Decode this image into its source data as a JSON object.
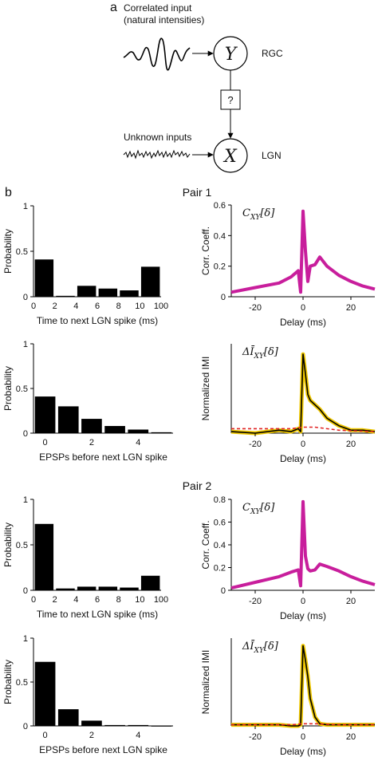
{
  "panel_a": {
    "label": "a",
    "correlated_input_line1": "Correlated input",
    "correlated_input_line2": "(natural intensities)",
    "rgc_node": "Y",
    "rgc_label": "RGC",
    "unknown_box": "?",
    "unknown_inputs": "Unknown inputs",
    "lgn_node": "X",
    "lgn_label": "LGN"
  },
  "panel_b": {
    "label": "b"
  },
  "colors": {
    "corr": "#c81e9c",
    "imi": "#000000",
    "imi_band": "#f0c800",
    "shuffle": "#e02020",
    "bars": "#000000"
  },
  "chart_data": [
    {
      "id": "pair1_time",
      "type": "bar",
      "title": "Pair 1",
      "xlabel": "Time to next LGN spike (ms)",
      "ylabel": "Probability",
      "categories": [
        "0-2",
        "2-4",
        "4-6",
        "6-8",
        "8-10",
        "10-100"
      ],
      "xticks": [
        "0",
        "2",
        "4",
        "6",
        "8",
        "10",
        "100"
      ],
      "values": [
        0.41,
        0.01,
        0.12,
        0.09,
        0.07,
        0.33
      ],
      "ylim": [
        0,
        1
      ],
      "yticks": [
        0,
        0.5,
        1
      ]
    },
    {
      "id": "pair1_corr",
      "type": "line",
      "annotation": "C_XY[δ]",
      "xlabel": "Delay (ms)",
      "ylabel": "Corr. Coeff.",
      "xlim": [
        -30,
        30
      ],
      "ylim": [
        0,
        0.6
      ],
      "xticks": [
        -20,
        0,
        20
      ],
      "yticks": [
        0,
        0.2,
        0.4,
        0.6
      ],
      "series": [
        {
          "x": [
            -30,
            -20,
            -10,
            -5,
            -2,
            -1,
            0,
            1,
            2,
            3,
            5,
            7,
            10,
            15,
            20,
            25,
            30
          ],
          "y": [
            0.03,
            0.06,
            0.09,
            0.13,
            0.17,
            0.03,
            0.56,
            0.3,
            0.1,
            0.2,
            0.21,
            0.26,
            0.2,
            0.14,
            0.1,
            0.07,
            0.05
          ]
        }
      ]
    },
    {
      "id": "pair1_epsp",
      "type": "bar",
      "xlabel": "EPSPs before next LGN spike",
      "ylabel": "Probability",
      "categories": [
        "0",
        "1",
        "2",
        "3",
        "4",
        "5"
      ],
      "xticks": [
        "0",
        "2",
        "4"
      ],
      "values": [
        0.41,
        0.3,
        0.16,
        0.08,
        0.04,
        0.01
      ],
      "ylim": [
        0,
        1
      ],
      "yticks": [
        0,
        0.5,
        1
      ]
    },
    {
      "id": "pair1_imi",
      "type": "line",
      "annotation": "ΔĪ_XY[δ]",
      "xlabel": "Delay (ms)",
      "ylabel": "Normalized IMI",
      "xlim": [
        -30,
        30
      ],
      "ylim": [
        0,
        0.6
      ],
      "xticks": [
        -20,
        0,
        20
      ],
      "series": [
        {
          "x": [
            -30,
            -20,
            -10,
            -5,
            -2,
            -1,
            0,
            1,
            2,
            3,
            5,
            7,
            10,
            15,
            20,
            25,
            30
          ],
          "y": [
            0.01,
            0.0,
            0.02,
            0.01,
            0.03,
            0.01,
            0.53,
            0.4,
            0.26,
            0.22,
            0.19,
            0.16,
            0.1,
            0.05,
            0.02,
            0.02,
            0.01
          ]
        },
        {
          "x": [
            -30,
            -15,
            -5,
            0,
            5,
            15,
            30
          ],
          "y": [
            0.03,
            0.03,
            0.03,
            0.04,
            0.04,
            0.02,
            0.01
          ]
        }
      ]
    },
    {
      "id": "pair2_time",
      "type": "bar",
      "title": "Pair 2",
      "xlabel": "Time to next LGN spike (ms)",
      "ylabel": "Probability",
      "categories": [
        "0-2",
        "2-4",
        "4-6",
        "6-8",
        "8-10",
        "10-100"
      ],
      "xticks": [
        "0",
        "2",
        "4",
        "6",
        "8",
        "10",
        "100"
      ],
      "values": [
        0.73,
        0.02,
        0.04,
        0.04,
        0.03,
        0.16
      ],
      "ylim": [
        0,
        1
      ],
      "yticks": [
        0,
        0.5,
        1
      ]
    },
    {
      "id": "pair2_corr",
      "type": "line",
      "annotation": "C_XY[δ]",
      "xlabel": "Delay (ms)",
      "ylabel": "Corr. Coeff.",
      "xlim": [
        -30,
        30
      ],
      "ylim": [
        0,
        0.8
      ],
      "xticks": [
        -20,
        0,
        20
      ],
      "yticks": [
        0,
        0.2,
        0.4,
        0.6,
        0.8
      ],
      "series": [
        {
          "x": [
            -30,
            -20,
            -10,
            -5,
            -2,
            -1,
            0,
            1,
            2,
            3,
            5,
            7,
            10,
            15,
            20,
            25,
            30
          ],
          "y": [
            0.02,
            0.07,
            0.12,
            0.16,
            0.18,
            0.04,
            0.78,
            0.3,
            0.19,
            0.17,
            0.18,
            0.23,
            0.21,
            0.17,
            0.12,
            0.08,
            0.05
          ]
        }
      ]
    },
    {
      "id": "pair2_epsp",
      "type": "bar",
      "xlabel": "EPSPs before next LGN spike",
      "ylabel": "Probability",
      "categories": [
        "0",
        "1",
        "2",
        "3",
        "4",
        "5"
      ],
      "xticks": [
        "0",
        "2",
        "4"
      ],
      "values": [
        0.73,
        0.19,
        0.06,
        0.01,
        0.01,
        0.0
      ],
      "ylim": [
        0,
        1
      ],
      "yticks": [
        0,
        0.5,
        1
      ]
    },
    {
      "id": "pair2_imi",
      "type": "line",
      "annotation": "ΔĪ_XY[δ]",
      "xlabel": "Delay (ms)",
      "ylabel": "Normalized IMI",
      "xlim": [
        -30,
        30
      ],
      "ylim": [
        0,
        0.8
      ],
      "xticks": [
        -20,
        0,
        20
      ],
      "series": [
        {
          "x": [
            -30,
            -20,
            -10,
            -5,
            -2,
            -1,
            0,
            1,
            2,
            3,
            5,
            7,
            10,
            15,
            20,
            25,
            30
          ],
          "y": [
            0.01,
            0.01,
            0.01,
            0.0,
            0.0,
            0.01,
            0.73,
            0.6,
            0.45,
            0.25,
            0.08,
            0.02,
            0.01,
            0.01,
            0.01,
            0.01,
            0.01
          ]
        },
        {
          "x": [
            -30,
            -15,
            -5,
            0,
            5,
            15,
            30
          ],
          "y": [
            0.01,
            0.01,
            0.01,
            0.02,
            0.02,
            0.01,
            0.01
          ]
        }
      ]
    }
  ]
}
